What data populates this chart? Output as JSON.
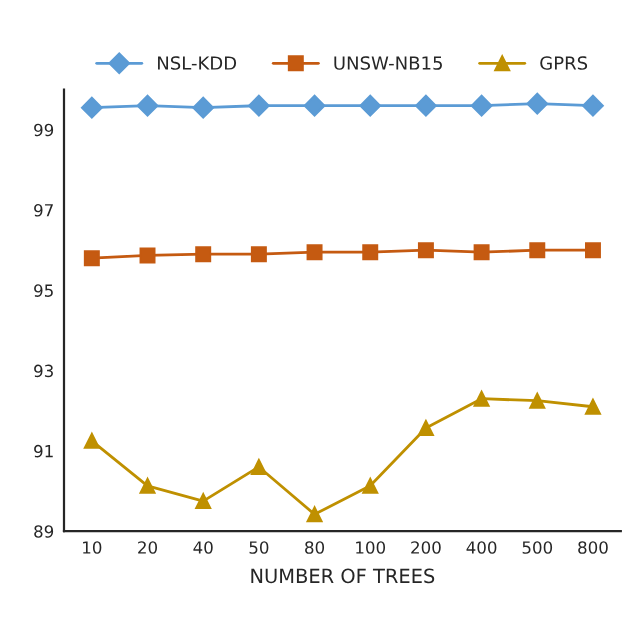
{
  "chart_data": {
    "type": "line",
    "xlabel": "NUMBER OF TREES",
    "categories": [
      "10",
      "20",
      "40",
      "50",
      "80",
      "100",
      "200",
      "400",
      "500",
      "800"
    ],
    "series": [
      {
        "name": "NSL-KDD",
        "color": "#5b9bd5",
        "marker": "diamond",
        "values": [
          99.55,
          99.6,
          99.55,
          99.6,
          99.6,
          99.6,
          99.6,
          99.6,
          99.65,
          99.6
        ]
      },
      {
        "name": "UNSW-NB15",
        "color": "#c55a11",
        "marker": "square",
        "values": [
          95.8,
          95.87,
          95.9,
          95.9,
          95.95,
          95.95,
          96.0,
          95.95,
          96.0,
          96.0
        ]
      },
      {
        "name": "GPRS",
        "color": "#bf9000",
        "marker": "triangle",
        "values": [
          91.25,
          90.13,
          89.75,
          90.6,
          89.42,
          90.13,
          91.57,
          92.3,
          92.25,
          92.1
        ]
      }
    ],
    "ylim": [
      89,
      100
    ],
    "yticks": [
      89,
      91,
      93,
      95,
      97,
      99
    ],
    "grid": false,
    "legend": "top"
  }
}
